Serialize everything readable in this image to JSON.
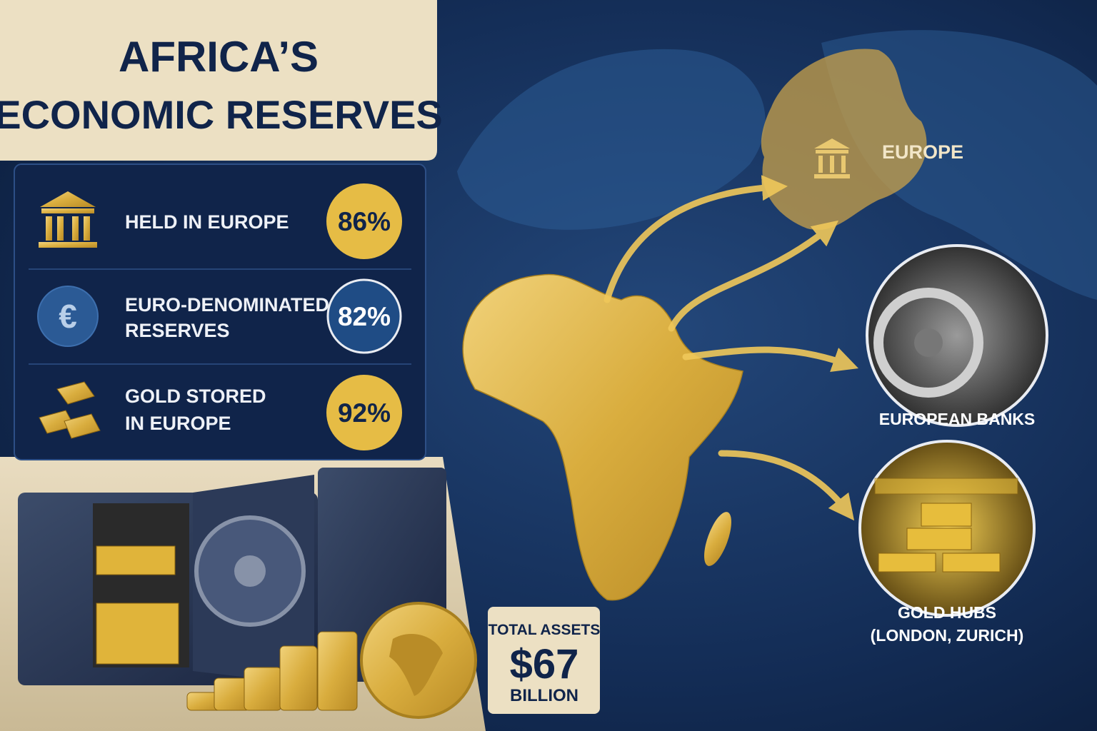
{
  "title": {
    "line1": "AFRICA’S",
    "line2": "ECONOMIC RESERVES"
  },
  "stats": [
    {
      "label_lines": [
        "HELD IN EUROPE"
      ],
      "value": "86%"
    },
    {
      "icon": "€",
      "label_lines": [
        "EURO-DENOMINATED",
        "RESERVES"
      ],
      "value": "82%"
    },
    {
      "label_lines": [
        "GOLD STORED",
        "IN EUROPE"
      ],
      "value": "92%"
    }
  ],
  "map_labels": {
    "europe": "EUROPE",
    "banks": "EUROPEAN BANKS",
    "hubs": [
      "GOLD HUBS",
      "(LONDON, ZURICH)"
    ]
  },
  "total": {
    "caption": "TOTAL ASSETS",
    "amount": "$67",
    "unit": "BILLION"
  }
}
